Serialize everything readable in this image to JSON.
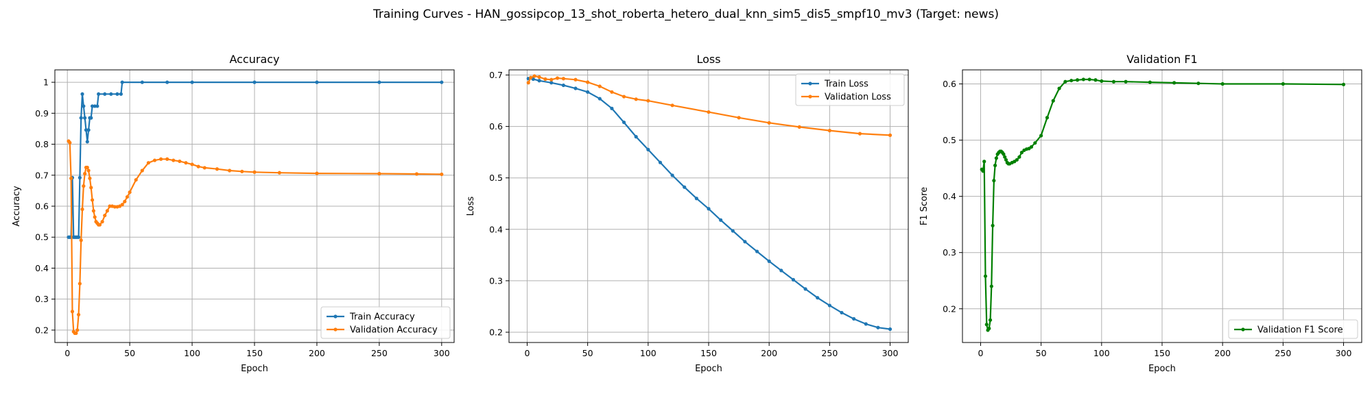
{
  "figure_title": "Training Curves - HAN_gossipcop_13_shot_roberta_hetero_dual_knn_sim5_dis5_smpf10_mv3 (Target: news)",
  "chart_data": [
    {
      "type": "line",
      "title": "Accuracy",
      "xlabel": "Epoch",
      "ylabel": "Accuracy",
      "xlim": [
        -10,
        310
      ],
      "ylim": [
        0.16,
        1.04
      ],
      "xticks": [
        0,
        50,
        100,
        150,
        200,
        250,
        300
      ],
      "yticks": [
        0.2,
        0.3,
        0.4,
        0.5,
        0.6,
        0.7,
        0.8,
        0.9,
        1.0
      ],
      "grid": true,
      "legend": "lower-right",
      "series": [
        {
          "name": "Train Accuracy",
          "color": "#1f77b4",
          "points": [
            [
              1,
              0.5
            ],
            [
              2,
              0.5
            ],
            [
              3,
              0.5
            ],
            [
              4,
              0.692
            ],
            [
              5,
              0.5
            ],
            [
              6,
              0.5
            ],
            [
              7,
              0.5
            ],
            [
              8,
              0.5
            ],
            [
              9,
              0.5
            ],
            [
              10,
              0.692
            ],
            [
              11,
              0.885
            ],
            [
              12,
              0.962
            ],
            [
              13,
              0.923
            ],
            [
              14,
              0.885
            ],
            [
              15,
              0.846
            ],
            [
              16,
              0.808
            ],
            [
              17,
              0.846
            ],
            [
              18,
              0.885
            ],
            [
              19,
              0.885
            ],
            [
              20,
              0.923
            ],
            [
              22,
              0.923
            ],
            [
              24,
              0.923
            ],
            [
              25,
              0.962
            ],
            [
              30,
              0.962
            ],
            [
              35,
              0.962
            ],
            [
              40,
              0.962
            ],
            [
              43,
              0.962
            ],
            [
              44,
              1.0
            ],
            [
              60,
              1.0
            ],
            [
              80,
              1.0
            ],
            [
              100,
              1.0
            ],
            [
              150,
              1.0
            ],
            [
              200,
              1.0
            ],
            [
              250,
              1.0
            ],
            [
              300,
              1.0
            ]
          ]
        },
        {
          "name": "Validation Accuracy",
          "color": "#ff7f0e",
          "points": [
            [
              1,
              0.81
            ],
            [
              2,
              0.805
            ],
            [
              3,
              0.69
            ],
            [
              4,
              0.26
            ],
            [
              5,
              0.195
            ],
            [
              6,
              0.19
            ],
            [
              7,
              0.19
            ],
            [
              8,
              0.2
            ],
            [
              9,
              0.25
            ],
            [
              10,
              0.35
            ],
            [
              11,
              0.49
            ],
            [
              12,
              0.59
            ],
            [
              13,
              0.665
            ],
            [
              14,
              0.705
            ],
            [
              15,
              0.725
            ],
            [
              16,
              0.725
            ],
            [
              17,
              0.715
            ],
            [
              18,
              0.69
            ],
            [
              19,
              0.66
            ],
            [
              20,
              0.62
            ],
            [
              21,
              0.585
            ],
            [
              22,
              0.565
            ],
            [
              23,
              0.55
            ],
            [
              24,
              0.545
            ],
            [
              25,
              0.54
            ],
            [
              26,
              0.54
            ],
            [
              28,
              0.55
            ],
            [
              30,
              0.57
            ],
            [
              32,
              0.585
            ],
            [
              34,
              0.6
            ],
            [
              36,
              0.6
            ],
            [
              38,
              0.598
            ],
            [
              40,
              0.598
            ],
            [
              42,
              0.6
            ],
            [
              44,
              0.605
            ],
            [
              46,
              0.615
            ],
            [
              48,
              0.63
            ],
            [
              50,
              0.645
            ],
            [
              55,
              0.685
            ],
            [
              60,
              0.715
            ],
            [
              65,
              0.74
            ],
            [
              70,
              0.748
            ],
            [
              75,
              0.752
            ],
            [
              80,
              0.752
            ],
            [
              85,
              0.748
            ],
            [
              90,
              0.745
            ],
            [
              95,
              0.74
            ],
            [
              100,
              0.735
            ],
            [
              105,
              0.728
            ],
            [
              110,
              0.724
            ],
            [
              120,
              0.72
            ],
            [
              130,
              0.715
            ],
            [
              140,
              0.712
            ],
            [
              150,
              0.71
            ],
            [
              170,
              0.708
            ],
            [
              200,
              0.706
            ],
            [
              250,
              0.705
            ],
            [
              280,
              0.704
            ],
            [
              300,
              0.703
            ]
          ]
        }
      ]
    },
    {
      "type": "line",
      "title": "Loss",
      "xlabel": "Epoch",
      "ylabel": "Loss",
      "xlim": [
        -15,
        315
      ],
      "ylim": [
        0.18,
        0.71
      ],
      "xticks": [
        0,
        50,
        100,
        150,
        200,
        250,
        300
      ],
      "yticks": [
        0.2,
        0.3,
        0.4,
        0.5,
        0.6,
        0.7
      ],
      "grid": true,
      "legend": "top-right",
      "series": [
        {
          "name": "Train Loss",
          "color": "#1f77b4",
          "points": [
            [
              1,
              0.693
            ],
            [
              5,
              0.692
            ],
            [
              10,
              0.689
            ],
            [
              20,
              0.685
            ],
            [
              30,
              0.68
            ],
            [
              40,
              0.674
            ],
            [
              50,
              0.667
            ],
            [
              60,
              0.654
            ],
            [
              70,
              0.635
            ],
            [
              80,
              0.608
            ],
            [
              90,
              0.58
            ],
            [
              100,
              0.555
            ],
            [
              110,
              0.53
            ],
            [
              120,
              0.505
            ],
            [
              130,
              0.482
            ],
            [
              140,
              0.46
            ],
            [
              150,
              0.44
            ],
            [
              160,
              0.418
            ],
            [
              170,
              0.397
            ],
            [
              180,
              0.376
            ],
            [
              190,
              0.357
            ],
            [
              200,
              0.338
            ],
            [
              210,
              0.32
            ],
            [
              220,
              0.302
            ],
            [
              230,
              0.284
            ],
            [
              240,
              0.267
            ],
            [
              250,
              0.252
            ],
            [
              260,
              0.238
            ],
            [
              270,
              0.226
            ],
            [
              280,
              0.216
            ],
            [
              290,
              0.209
            ],
            [
              300,
              0.206
            ]
          ]
        },
        {
          "name": "Validation Loss",
          "color": "#ff7f0e",
          "points": [
            [
              1,
              0.685
            ],
            [
              3,
              0.695
            ],
            [
              6,
              0.698
            ],
            [
              10,
              0.696
            ],
            [
              15,
              0.692
            ],
            [
              20,
              0.691
            ],
            [
              25,
              0.694
            ],
            [
              30,
              0.693
            ],
            [
              40,
              0.691
            ],
            [
              50,
              0.686
            ],
            [
              60,
              0.678
            ],
            [
              70,
              0.667
            ],
            [
              80,
              0.658
            ],
            [
              90,
              0.653
            ],
            [
              100,
              0.65
            ],
            [
              120,
              0.641
            ],
            [
              150,
              0.628
            ],
            [
              175,
              0.617
            ],
            [
              200,
              0.607
            ],
            [
              225,
              0.599
            ],
            [
              250,
              0.592
            ],
            [
              275,
              0.586
            ],
            [
              300,
              0.583
            ]
          ]
        }
      ]
    },
    {
      "type": "line",
      "title": "Validation F1",
      "xlabel": "Epoch",
      "ylabel": "F1 Score",
      "xlim": [
        -15,
        315
      ],
      "ylim": [
        0.14,
        0.625
      ],
      "xticks": [
        0,
        50,
        100,
        150,
        200,
        250,
        300
      ],
      "yticks": [
        0.2,
        0.3,
        0.4,
        0.5,
        0.6
      ],
      "grid": true,
      "legend": "lower-right",
      "series": [
        {
          "name": "Validation F1 Score",
          "color": "#008000",
          "points": [
            [
              1,
              0.448
            ],
            [
              2,
              0.445
            ],
            [
              3,
              0.462
            ],
            [
              4,
              0.258
            ],
            [
              5,
              0.172
            ],
            [
              6,
              0.162
            ],
            [
              7,
              0.165
            ],
            [
              8,
              0.18
            ],
            [
              9,
              0.24
            ],
            [
              10,
              0.348
            ],
            [
              11,
              0.428
            ],
            [
              12,
              0.455
            ],
            [
              13,
              0.468
            ],
            [
              14,
              0.475
            ],
            [
              15,
              0.478
            ],
            [
              16,
              0.48
            ],
            [
              17,
              0.48
            ],
            [
              18,
              0.478
            ],
            [
              19,
              0.475
            ],
            [
              20,
              0.47
            ],
            [
              21,
              0.465
            ],
            [
              22,
              0.46
            ],
            [
              23,
              0.458
            ],
            [
              24,
              0.458
            ],
            [
              26,
              0.46
            ],
            [
              28,
              0.462
            ],
            [
              30,
              0.465
            ],
            [
              32,
              0.47
            ],
            [
              34,
              0.478
            ],
            [
              36,
              0.482
            ],
            [
              38,
              0.484
            ],
            [
              40,
              0.485
            ],
            [
              42,
              0.488
            ],
            [
              45,
              0.495
            ],
            [
              50,
              0.508
            ],
            [
              55,
              0.54
            ],
            [
              60,
              0.57
            ],
            [
              65,
              0.592
            ],
            [
              70,
              0.604
            ],
            [
              75,
              0.606
            ],
            [
              80,
              0.607
            ],
            [
              85,
              0.608
            ],
            [
              90,
              0.608
            ],
            [
              95,
              0.607
            ],
            [
              100,
              0.605
            ],
            [
              110,
              0.604
            ],
            [
              120,
              0.604
            ],
            [
              140,
              0.603
            ],
            [
              160,
              0.602
            ],
            [
              180,
              0.601
            ],
            [
              200,
              0.6
            ],
            [
              250,
              0.6
            ],
            [
              300,
              0.599
            ]
          ]
        }
      ]
    }
  ]
}
